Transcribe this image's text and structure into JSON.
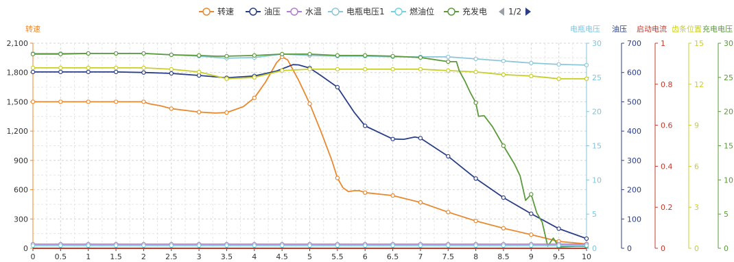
{
  "chart_data": {
    "type": "line",
    "legend": {
      "items": [
        {
          "name": "转速",
          "color": "#e8892f"
        },
        {
          "name": "油压",
          "color": "#2a3e86"
        },
        {
          "name": "水温",
          "color": "#b07fd1"
        },
        {
          "name": "电瓶电压1",
          "color": "#8cc7d8"
        },
        {
          "name": "燃油位",
          "color": "#6fd3e0"
        },
        {
          "name": "充发电",
          "color": "#5a9a3a"
        }
      ],
      "page_text": "1/2",
      "placement": "top-center"
    },
    "grid": true,
    "x": {
      "min": 0,
      "max": 10,
      "tick_labels": [
        "0",
        "0.5",
        "1",
        "1.5",
        "2",
        "2.5",
        "3",
        "3.5",
        "4",
        "4.5",
        "5",
        "5.5",
        "6",
        "6.5",
        "7",
        "7.5",
        "8",
        "8.5",
        "9",
        "9.5",
        "10"
      ]
    },
    "axes": [
      {
        "id": "rpm",
        "name": "转速",
        "color": "#e8892f",
        "min": 0,
        "max": 2100,
        "ticks": [
          0,
          300,
          600,
          900,
          1200,
          1500,
          1800,
          2100
        ],
        "tick_labels": [
          "0",
          "300",
          "600",
          "900",
          "1,200",
          "1,500",
          "1,800",
          "2,100"
        ]
      },
      {
        "id": "volt",
        "name": "电瓶电压",
        "color": "#7fc4dc",
        "min": 0,
        "max": 30,
        "ticks": [
          0,
          5,
          10,
          15,
          20,
          25,
          30
        ],
        "tick_labels": [
          "0",
          "5",
          "10",
          "15",
          "20",
          "25",
          "30"
        ]
      },
      {
        "id": "oil",
        "name": "油压",
        "color": "#2a3e86",
        "min": 0,
        "max": 700,
        "ticks": [
          0,
          100,
          200,
          300,
          400,
          500,
          600,
          700
        ],
        "tick_labels": [
          "0",
          "100",
          "200",
          "300",
          "400",
          "500",
          "600",
          "700"
        ]
      },
      {
        "id": "start",
        "name": "启动电流",
        "color": "#c0392b",
        "min": 0,
        "max": 1,
        "ticks": [
          0,
          0.2,
          0.4,
          0.6,
          0.8,
          1
        ],
        "tick_labels": [
          "0",
          "0.2",
          "0.4",
          "0.6",
          "0.8",
          "1"
        ]
      },
      {
        "id": "gear",
        "name": "齿条位置",
        "color": "#c8cf2a",
        "min": 0,
        "max": 15,
        "ticks": [
          0,
          3,
          6,
          9,
          12,
          15
        ],
        "tick_labels": [
          "0",
          "3",
          "6",
          "9",
          "12",
          "15"
        ]
      },
      {
        "id": "charge",
        "name": "充电电压",
        "color": "#5a9a3a",
        "min": 0,
        "max": 30,
        "ticks": [
          0,
          5,
          10,
          15,
          20,
          25,
          30
        ],
        "tick_labels": [
          "0",
          "5",
          "10",
          "15",
          "20",
          "25",
          "30"
        ]
      }
    ],
    "series": [
      {
        "name": "转速",
        "axis": "rpm",
        "color": "#e8892f",
        "marker_every": 1,
        "points": [
          [
            0,
            1500
          ],
          [
            0.5,
            1500
          ],
          [
            1,
            1500
          ],
          [
            1.5,
            1500
          ],
          [
            1.9,
            1500
          ],
          [
            2,
            1500
          ],
          [
            2.1,
            1480
          ],
          [
            2.2,
            1470
          ],
          [
            2.3,
            1460
          ],
          [
            2.5,
            1430
          ],
          [
            3,
            1395
          ],
          [
            3.3,
            1385
          ],
          [
            3.5,
            1390
          ],
          [
            3.8,
            1450
          ],
          [
            4,
            1540
          ],
          [
            4.2,
            1700
          ],
          [
            4.4,
            1900
          ],
          [
            4.5,
            1960
          ],
          [
            4.6,
            1930
          ],
          [
            4.8,
            1720
          ],
          [
            5,
            1480
          ],
          [
            5.2,
            1200
          ],
          [
            5.4,
            900
          ],
          [
            5.5,
            720
          ],
          [
            5.6,
            620
          ],
          [
            5.7,
            580
          ],
          [
            5.8,
            590
          ],
          [
            5.9,
            590
          ],
          [
            6,
            570
          ],
          [
            6.5,
            540
          ],
          [
            7,
            470
          ],
          [
            7.5,
            370
          ],
          [
            8,
            280
          ],
          [
            8.5,
            205
          ],
          [
            9,
            140
          ],
          [
            9.5,
            70
          ],
          [
            10,
            45
          ]
        ]
      },
      {
        "name": "油压",
        "axis": "oil",
        "color": "#2a3e86",
        "marker_every": 1,
        "points": [
          [
            0,
            602
          ],
          [
            0.5,
            602
          ],
          [
            1,
            602
          ],
          [
            1.5,
            602
          ],
          [
            2,
            600
          ],
          [
            2.5,
            597
          ],
          [
            3,
            590
          ],
          [
            3.5,
            582
          ],
          [
            4,
            588
          ],
          [
            4.4,
            605
          ],
          [
            4.7,
            627
          ],
          [
            4.8,
            626
          ],
          [
            5,
            615
          ],
          [
            5.2,
            590
          ],
          [
            5.5,
            550
          ],
          [
            5.8,
            465
          ],
          [
            6,
            418
          ],
          [
            6.5,
            373
          ],
          [
            6.7,
            372
          ],
          [
            6.9,
            380
          ],
          [
            7,
            376
          ],
          [
            7.5,
            314
          ],
          [
            8,
            238
          ],
          [
            8.5,
            173
          ],
          [
            9,
            118
          ],
          [
            9.5,
            67
          ],
          [
            10,
            33
          ]
        ]
      },
      {
        "name": "电瓶电压1",
        "axis": "volt",
        "color": "#8cc7d8",
        "marker_every": 1,
        "points": [
          [
            0,
            28.5
          ],
          [
            0.5,
            28.5
          ],
          [
            1,
            28.5
          ],
          [
            1.5,
            28.5
          ],
          [
            2,
            28.5
          ],
          [
            2.5,
            28.3
          ],
          [
            3,
            28.1
          ],
          [
            3.5,
            27.8
          ],
          [
            4,
            27.9
          ],
          [
            4.5,
            28.4
          ],
          [
            5,
            28.2
          ],
          [
            5.5,
            28.1
          ],
          [
            6,
            28.1
          ],
          [
            6.5,
            28.0
          ],
          [
            7,
            28.0
          ],
          [
            7.5,
            28.0
          ],
          [
            8,
            27.7
          ],
          [
            8.5,
            27.4
          ],
          [
            9,
            27.1
          ],
          [
            9.5,
            26.9
          ],
          [
            10,
            26.8
          ]
        ]
      },
      {
        "name": "齿条位置",
        "axis": "gear",
        "color": "#c8cf2a",
        "marker_every": 1,
        "points": [
          [
            0,
            13.2
          ],
          [
            0.5,
            13.2
          ],
          [
            1,
            13.2
          ],
          [
            1.5,
            13.2
          ],
          [
            2,
            13.2
          ],
          [
            2.5,
            13.1
          ],
          [
            3,
            12.9
          ],
          [
            3.5,
            12.4
          ],
          [
            4,
            12.5
          ],
          [
            4.5,
            13.0
          ],
          [
            5,
            13.1
          ],
          [
            5.5,
            13.1
          ],
          [
            6,
            13.1
          ],
          [
            6.5,
            13.1
          ],
          [
            7,
            13.1
          ],
          [
            7.5,
            13.0
          ],
          [
            8,
            12.9
          ],
          [
            8.5,
            12.7
          ],
          [
            9,
            12.6
          ],
          [
            9.5,
            12.4
          ],
          [
            10,
            12.4
          ]
        ]
      },
      {
        "name": "充发电",
        "axis": "charge",
        "color": "#5a9a3a",
        "marker_every": 1,
        "points": [
          [
            0,
            28.4
          ],
          [
            0.5,
            28.4
          ],
          [
            1,
            28.5
          ],
          [
            1.5,
            28.5
          ],
          [
            2,
            28.5
          ],
          [
            2.5,
            28.3
          ],
          [
            3,
            28.2
          ],
          [
            3.3,
            28.1
          ],
          [
            3.5,
            28.1
          ],
          [
            4,
            28.2
          ],
          [
            4.5,
            28.4
          ],
          [
            5,
            28.4
          ],
          [
            5.5,
            28.2
          ],
          [
            6,
            28.2
          ],
          [
            6.5,
            28.1
          ],
          [
            7,
            27.9
          ],
          [
            7.5,
            27.3
          ],
          [
            7.65,
            27.3
          ],
          [
            7.7,
            26.0
          ],
          [
            7.8,
            24.5
          ],
          [
            7.9,
            22.8
          ],
          [
            8,
            21.3
          ],
          [
            8.05,
            19.3
          ],
          [
            8.15,
            19.4
          ],
          [
            8.3,
            17.8
          ],
          [
            8.5,
            15.0
          ],
          [
            8.7,
            12.3
          ],
          [
            8.8,
            10.6
          ],
          [
            8.9,
            7.0
          ],
          [
            9,
            7.9
          ],
          [
            9.1,
            5.2
          ],
          [
            9.2,
            3.8
          ],
          [
            9.3,
            0.3
          ],
          [
            9.4,
            1.5
          ],
          [
            9.5,
            0.2
          ],
          [
            9.8,
            0.3
          ],
          [
            10,
            0.3
          ]
        ]
      },
      {
        "name": "水温",
        "axis": "volt",
        "color": "#b07fd1",
        "marker_every": 1,
        "points": [
          [
            0,
            0.6
          ],
          [
            0.5,
            0.6
          ],
          [
            1,
            0.6
          ],
          [
            1.5,
            0.6
          ],
          [
            2,
            0.6
          ],
          [
            2.5,
            0.6
          ],
          [
            3,
            0.6
          ],
          [
            3.5,
            0.6
          ],
          [
            4,
            0.6
          ],
          [
            4.5,
            0.6
          ],
          [
            5,
            0.6
          ],
          [
            5.5,
            0.6
          ],
          [
            6,
            0.6
          ],
          [
            6.5,
            0.6
          ],
          [
            7,
            0.6
          ],
          [
            7.5,
            0.6
          ],
          [
            8,
            0.6
          ],
          [
            8.5,
            0.6
          ],
          [
            9,
            0.6
          ],
          [
            9.5,
            0.6
          ],
          [
            10,
            0.6
          ]
        ]
      },
      {
        "name": "燃油位",
        "axis": "volt",
        "color": "#6fd3e0",
        "marker_every": 1,
        "points": [
          [
            0,
            0.4
          ],
          [
            0.5,
            0.4
          ],
          [
            1,
            0.4
          ],
          [
            1.5,
            0.4
          ],
          [
            2,
            0.4
          ],
          [
            2.5,
            0.4
          ],
          [
            3,
            0.4
          ],
          [
            3.5,
            0.4
          ],
          [
            4,
            0.4
          ],
          [
            4.5,
            0.4
          ],
          [
            5,
            0.4
          ],
          [
            5.5,
            0.4
          ],
          [
            6,
            0.4
          ],
          [
            6.5,
            0.4
          ],
          [
            7,
            0.4
          ],
          [
            7.5,
            0.4
          ],
          [
            8,
            0.4
          ],
          [
            8.5,
            0.4
          ],
          [
            9,
            0.4
          ],
          [
            9.5,
            0.4
          ],
          [
            10,
            0.4
          ]
        ]
      },
      {
        "name": "启动电流",
        "axis": "start",
        "color": "#c0392b",
        "marker_every": 0,
        "points": [
          [
            0,
            0.0
          ],
          [
            10,
            0.0
          ]
        ]
      }
    ]
  }
}
